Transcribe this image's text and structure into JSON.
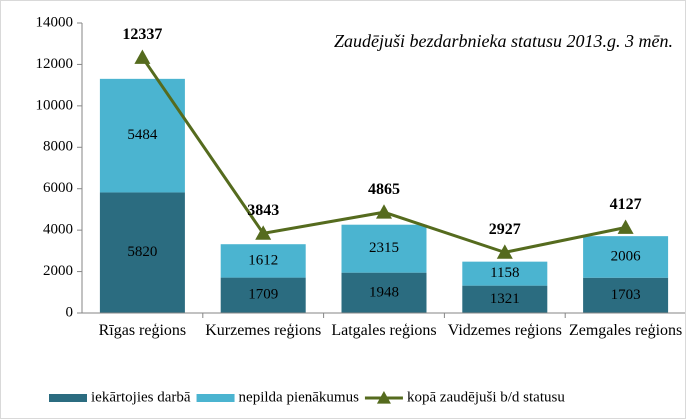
{
  "chart_data": {
    "type": "bar-line",
    "title": "Zaudējuši bezdarbnieka statusu 2013.g. 3 mēn.",
    "categories": [
      "Rīgas reģions",
      "Kurzemes reģions",
      "Latgales reģions",
      "Vidzemes reģions",
      "Zemgales reģions"
    ],
    "series": [
      {
        "name": "iekārtojies darbā",
        "color": "#2b6c80",
        "values": [
          5820,
          1709,
          1948,
          1321,
          1703
        ]
      },
      {
        "name": "nepilda pienākumus",
        "color": "#4bb4d0",
        "values": [
          5484,
          1612,
          2315,
          1158,
          2006
        ]
      },
      {
        "name": "kopā zaudējuši b/d statusu",
        "color": "#556b1e",
        "type": "line",
        "values": [
          12337,
          3843,
          4865,
          2927,
          4127
        ]
      }
    ],
    "ylim": [
      0,
      14000
    ],
    "yticks": [
      0,
      2000,
      4000,
      6000,
      8000,
      10000,
      12000,
      14000
    ],
    "legend": "bottom"
  }
}
